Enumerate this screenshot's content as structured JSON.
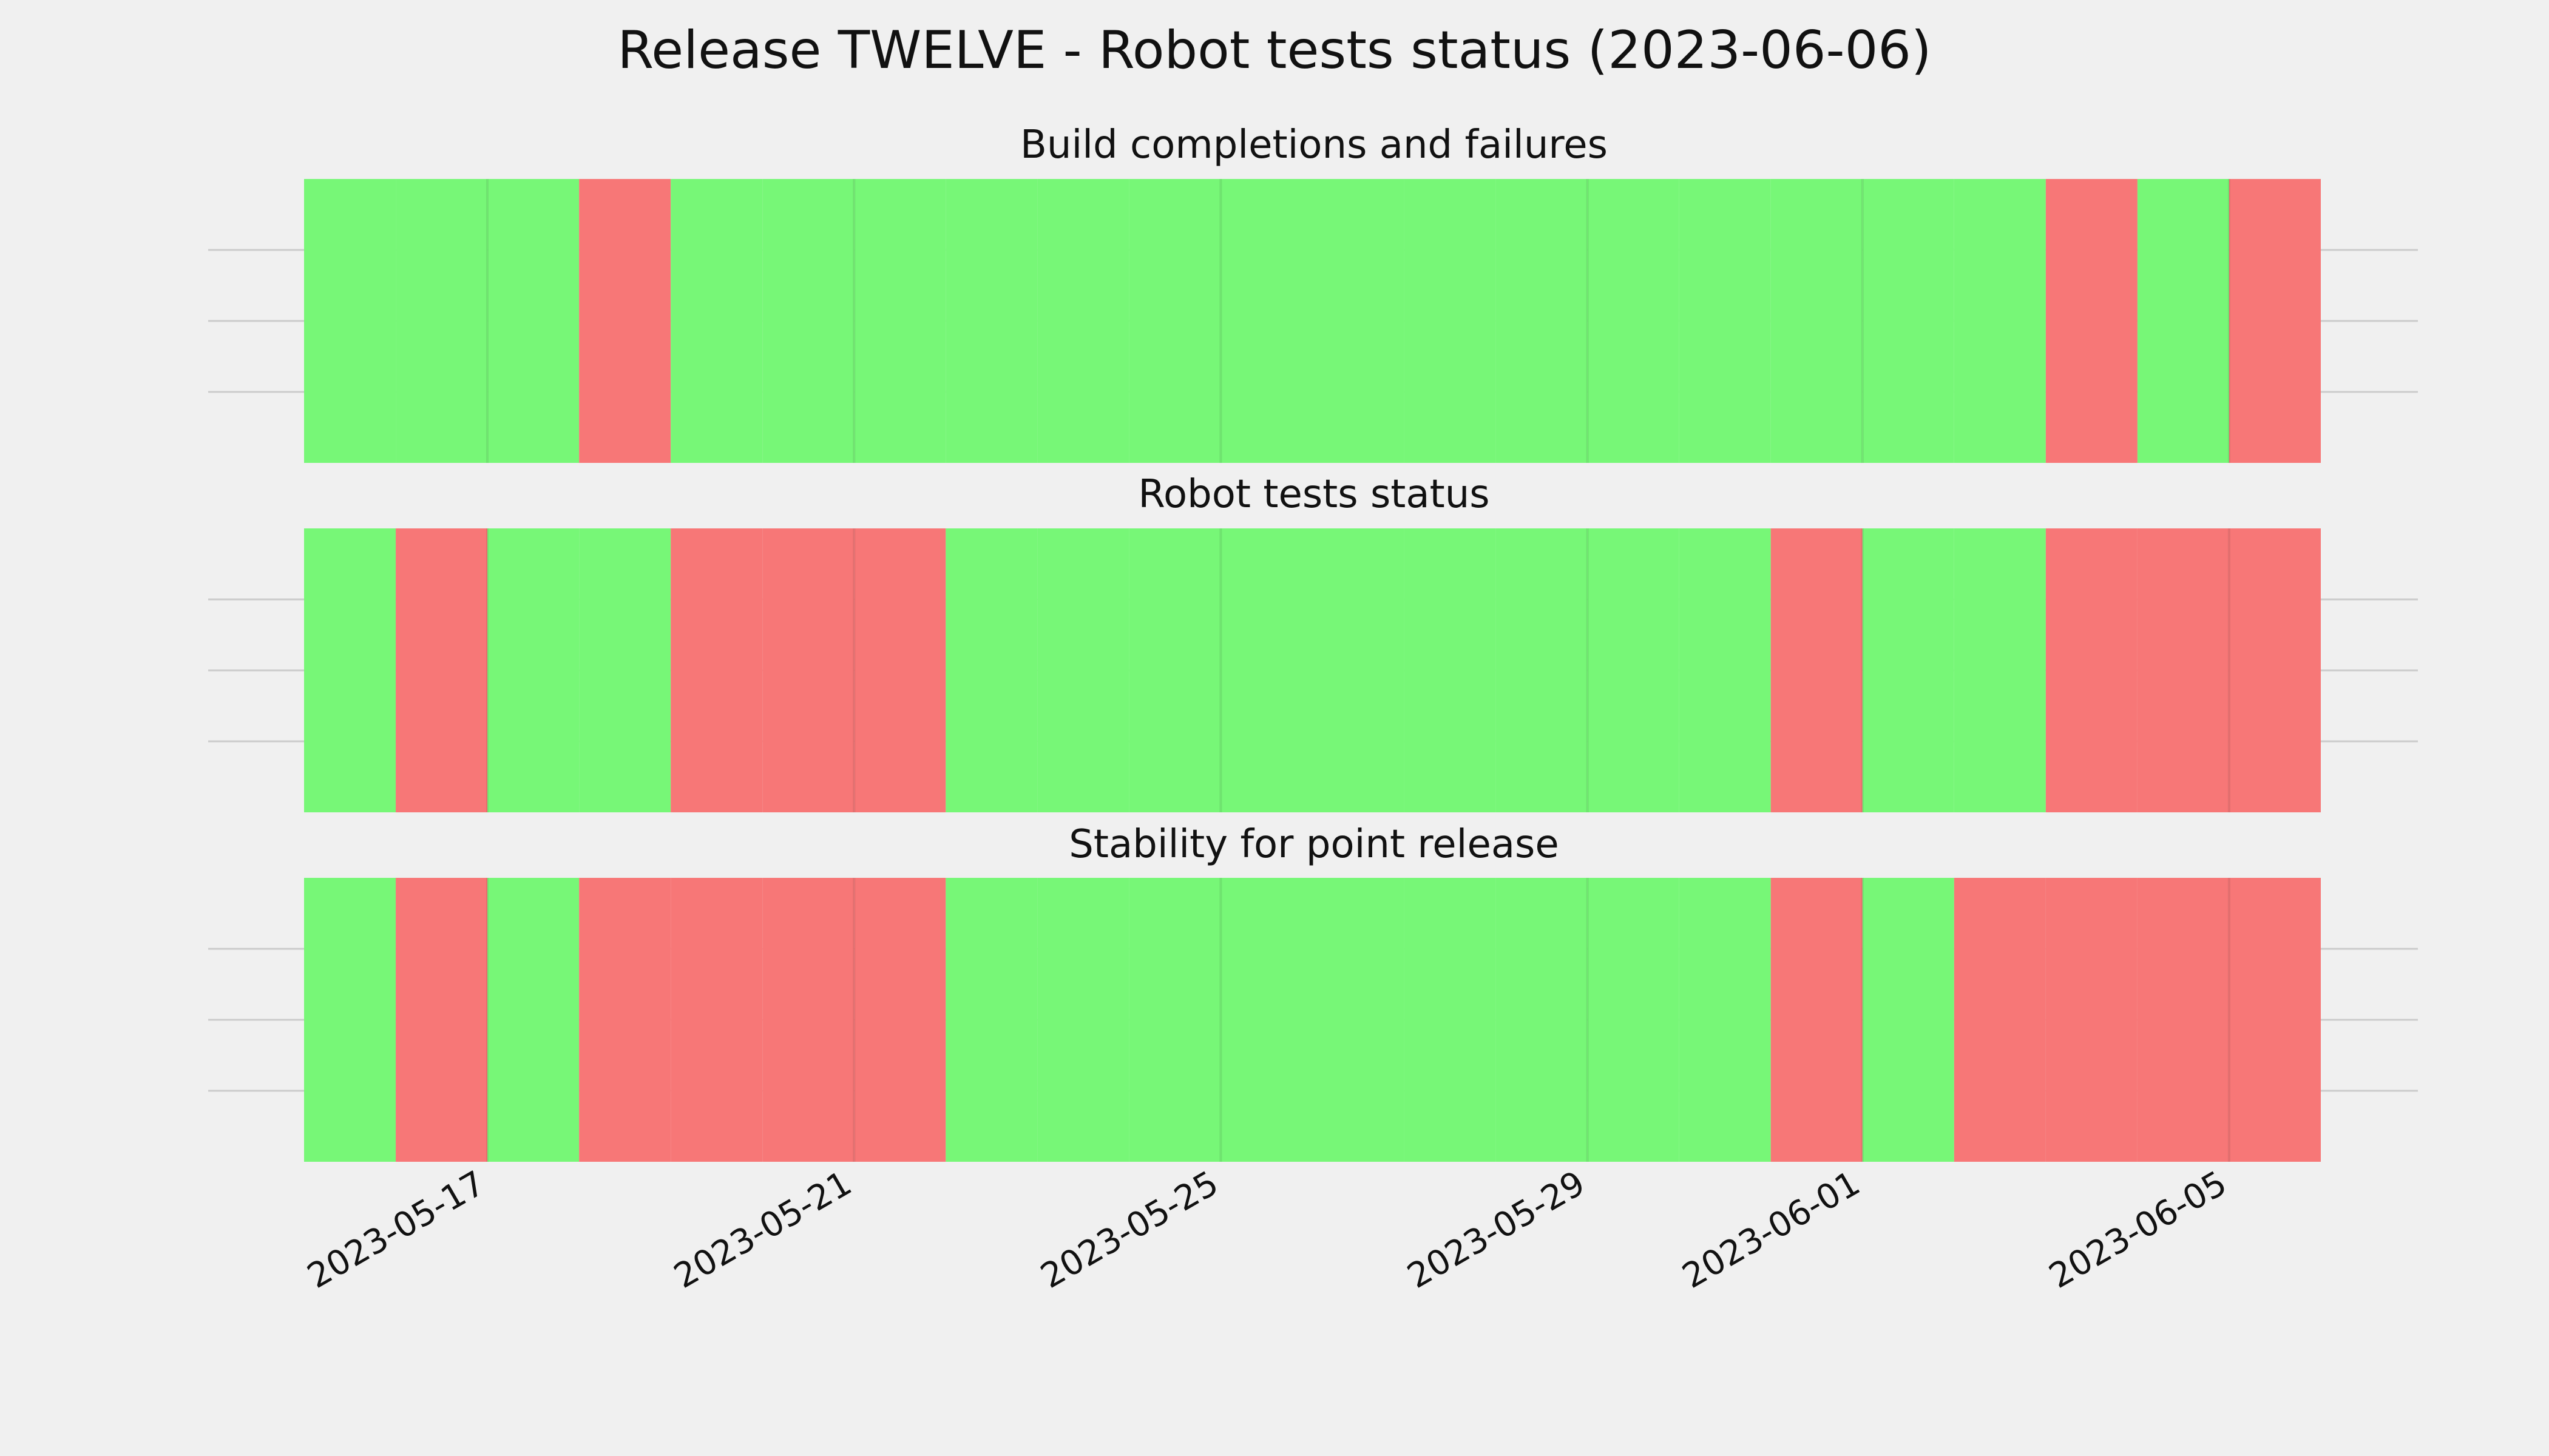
{
  "chart_data": {
    "type": "status-timeline",
    "title": "Release TWELVE - Robot tests status (2023-06-06)",
    "x_start": "2023-05-15",
    "x_end": "2023-06-06",
    "x_ticks": [
      "2023-05-17",
      "2023-05-21",
      "2023-05-25",
      "2023-05-29",
      "2023-06-01",
      "2023-06-05"
    ],
    "colors": {
      "pass": "#77f777",
      "fail": "#f77777"
    },
    "grid": true,
    "panels": [
      {
        "name": "Build completions and failures",
        "statuses": [
          "pass",
          "pass",
          "pass",
          "fail",
          "pass",
          "pass",
          "pass",
          "pass",
          "pass",
          "pass",
          "pass",
          "pass",
          "pass",
          "pass",
          "pass",
          "pass",
          "pass",
          "pass",
          "pass",
          "fail",
          "pass",
          "fail"
        ]
      },
      {
        "name": "Robot tests status",
        "statuses": [
          "pass",
          "fail",
          "pass",
          "pass",
          "fail",
          "fail",
          "fail",
          "pass",
          "pass",
          "pass",
          "pass",
          "pass",
          "pass",
          "pass",
          "pass",
          "pass",
          "fail",
          "pass",
          "pass",
          "fail",
          "fail",
          "fail"
        ]
      },
      {
        "name": "Stability for point release",
        "statuses": [
          "pass",
          "fail",
          "pass",
          "fail",
          "fail",
          "fail",
          "fail",
          "pass",
          "pass",
          "pass",
          "pass",
          "pass",
          "pass",
          "pass",
          "pass",
          "pass",
          "fail",
          "pass",
          "fail",
          "fail",
          "fail",
          "fail"
        ]
      }
    ]
  }
}
